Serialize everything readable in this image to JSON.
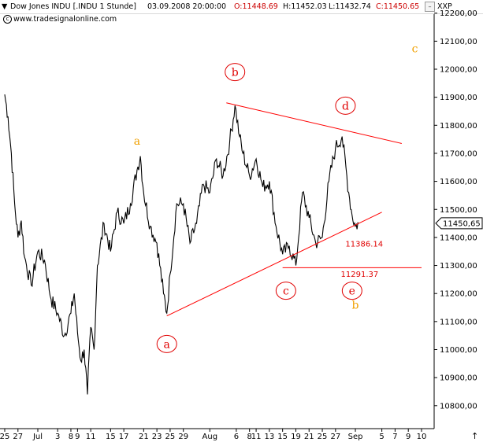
{
  "header": {
    "symbol": "Dow Jones INDU [.INDU  1 Stunde]",
    "datetime": "03.09.2008 20:00:00",
    "open": "O:11448.69",
    "high": "H:11452.03",
    "low": "L:11432.74",
    "close": "C:11450.65",
    "minimize_label": "–",
    "close_label": "×",
    "scale": "XXP"
  },
  "watermark": "www.tradesignalonline.com",
  "watermark_icon": "copyright-icon",
  "chart_data": {
    "type": "line",
    "title": "",
    "xlabel": "",
    "ylabel": "",
    "ylim": [
      10730,
      12230
    ],
    "y_ticks": [
      10800,
      10900,
      11000,
      11100,
      11200,
      11300,
      11400,
      11500,
      11600,
      11700,
      11800,
      11900,
      12000,
      12100,
      12200
    ],
    "y_tick_labels": [
      "10800,00",
      "10900,00",
      "11000,00",
      "11100,00",
      "11200,00",
      "11300,00",
      "11400,00",
      "11500,00",
      "11600,00",
      "11700,00",
      "11800,00",
      "11900,00",
      "12000,00",
      "12100,00",
      "12200,00"
    ],
    "x_tick_labels": [
      {
        "label": "25",
        "t": 0
      },
      {
        "label": "27",
        "t": 2
      },
      {
        "label": "Jul",
        "t": 5
      },
      {
        "label": "3",
        "t": 8
      },
      {
        "label": "8",
        "t": 10
      },
      {
        "label": "9",
        "t": 11
      },
      {
        "label": "11",
        "t": 13
      },
      {
        "label": "15",
        "t": 16
      },
      {
        "label": "17",
        "t": 18
      },
      {
        "label": "21",
        "t": 21
      },
      {
        "label": "23",
        "t": 23
      },
      {
        "label": "25",
        "t": 25
      },
      {
        "label": "29",
        "t": 27
      },
      {
        "label": "Aug",
        "t": 31
      },
      {
        "label": "6",
        "t": 35
      },
      {
        "label": "8",
        "t": 37
      },
      {
        "label": "11",
        "t": 38
      },
      {
        "label": "13",
        "t": 40
      },
      {
        "label": "15",
        "t": 42
      },
      {
        "label": "19",
        "t": 44
      },
      {
        "label": "21",
        "t": 46
      },
      {
        "label": "25",
        "t": 48
      },
      {
        "label": "27",
        "t": 50
      },
      {
        "label": "Sep",
        "t": 53
      },
      {
        "label": "5",
        "t": 57
      },
      {
        "label": "7",
        "t": 59
      },
      {
        "label": "9",
        "t": 61
      },
      {
        "label": "10",
        "t": 63
      }
    ],
    "current_price": {
      "value": 11450.65,
      "label": "11450,65"
    },
    "series": [
      {
        "color": "#000000",
        "points": [
          {
            "t": 0,
            "y": 11910
          },
          {
            "t": 0.5,
            "y": 11830
          },
          {
            "t": 1,
            "y": 11700
          },
          {
            "t": 1.5,
            "y": 11520
          },
          {
            "t": 2,
            "y": 11400
          },
          {
            "t": 2.5,
            "y": 11460
          },
          {
            "t": 3,
            "y": 11330
          },
          {
            "t": 4,
            "y": 11230
          },
          {
            "t": 5,
            "y": 11350
          },
          {
            "t": 6,
            "y": 11320
          },
          {
            "t": 7,
            "y": 11180
          },
          {
            "t": 8,
            "y": 11130
          },
          {
            "t": 9,
            "y": 11050
          },
          {
            "t": 10,
            "y": 11130
          },
          {
            "t": 10.5,
            "y": 11200
          },
          {
            "t": 11,
            "y": 11060
          },
          {
            "t": 11.5,
            "y": 10960
          },
          {
            "t": 12,
            "y": 11000
          },
          {
            "t": 12.5,
            "y": 10840
          },
          {
            "t": 13,
            "y": 11080
          },
          {
            "t": 13.5,
            "y": 11000
          },
          {
            "t": 14,
            "y": 11300
          },
          {
            "t": 15,
            "y": 11450
          },
          {
            "t": 16,
            "y": 11350
          },
          {
            "t": 17,
            "y": 11490
          },
          {
            "t": 18,
            "y": 11450
          },
          {
            "t": 19,
            "y": 11520
          },
          {
            "t": 20,
            "y": 11640
          },
          {
            "t": 20.5,
            "y": 11690
          },
          {
            "t": 21,
            "y": 11560
          },
          {
            "t": 22,
            "y": 11440
          },
          {
            "t": 23,
            "y": 11380
          },
          {
            "t": 24,
            "y": 11200
          },
          {
            "t": 24.5,
            "y": 11130
          },
          {
            "t": 25,
            "y": 11270
          },
          {
            "t": 26,
            "y": 11520
          },
          {
            "t": 27,
            "y": 11520
          },
          {
            "t": 28,
            "y": 11380
          },
          {
            "t": 29,
            "y": 11450
          },
          {
            "t": 30,
            "y": 11590
          },
          {
            "t": 31,
            "y": 11560
          },
          {
            "t": 32,
            "y": 11680
          },
          {
            "t": 33,
            "y": 11620
          },
          {
            "t": 34,
            "y": 11740
          },
          {
            "t": 34.8,
            "y": 11870
          },
          {
            "t": 35.5,
            "y": 11760
          },
          {
            "t": 36,
            "y": 11700
          },
          {
            "t": 37,
            "y": 11620
          },
          {
            "t": 38,
            "y": 11680
          },
          {
            "t": 39,
            "y": 11580
          },
          {
            "t": 40,
            "y": 11600
          },
          {
            "t": 41,
            "y": 11440
          },
          {
            "t": 42,
            "y": 11340
          },
          {
            "t": 43,
            "y": 11370
          },
          {
            "t": 44,
            "y": 11300
          },
          {
            "t": 45,
            "y": 11560
          },
          {
            "t": 46,
            "y": 11470
          },
          {
            "t": 47,
            "y": 11380
          },
          {
            "t": 48,
            "y": 11400
          },
          {
            "t": 49,
            "y": 11600
          },
          {
            "t": 50,
            "y": 11720
          },
          {
            "t": 51,
            "y": 11760
          },
          {
            "t": 52,
            "y": 11560
          },
          {
            "t": 52.5,
            "y": 11480
          },
          {
            "t": 53,
            "y": 11440
          },
          {
            "t": 53.5,
            "y": 11450
          }
        ]
      }
    ],
    "trendlines": [
      {
        "from": {
          "t": 24.5,
          "y": 11120
        },
        "to": {
          "t": 57,
          "y": 11490
        }
      },
      {
        "from": {
          "t": 33.5,
          "y": 11880
        },
        "to": {
          "t": 60,
          "y": 11735
        }
      },
      {
        "from": {
          "t": 42,
          "y": 11292
        },
        "to": {
          "t": 63,
          "y": 11292
        }
      }
    ],
    "annotations": [
      {
        "text": "a",
        "t": 24.5,
        "y": 11020,
        "style": "circled"
      },
      {
        "text": "b",
        "t": 34.8,
        "y": 11990,
        "style": "circled"
      },
      {
        "text": "c",
        "t": 42.5,
        "y": 11210,
        "style": "circled"
      },
      {
        "text": "d",
        "t": 51.5,
        "y": 11870,
        "style": "circled"
      },
      {
        "text": "e",
        "t": 52.5,
        "y": 11210,
        "style": "circled"
      },
      {
        "text": "a",
        "t": 20,
        "y": 11745,
        "style": "orange"
      },
      {
        "text": "b",
        "t": 53,
        "y": 11160,
        "style": "orange"
      },
      {
        "text": "c",
        "t": 62,
        "y": 12075,
        "style": "orange"
      },
      {
        "text": "11386.14",
        "t": 51.5,
        "y": 11378,
        "style": "value"
      },
      {
        "text": "11291.37",
        "t": 50.8,
        "y": 11270,
        "style": "value"
      }
    ],
    "grid": false,
    "legend": "none",
    "colors": {
      "price": "#000000",
      "trendline": "#ff0000",
      "labels_red": "#e00000",
      "labels_orange": "#f0a000",
      "axis": "#000000"
    }
  }
}
